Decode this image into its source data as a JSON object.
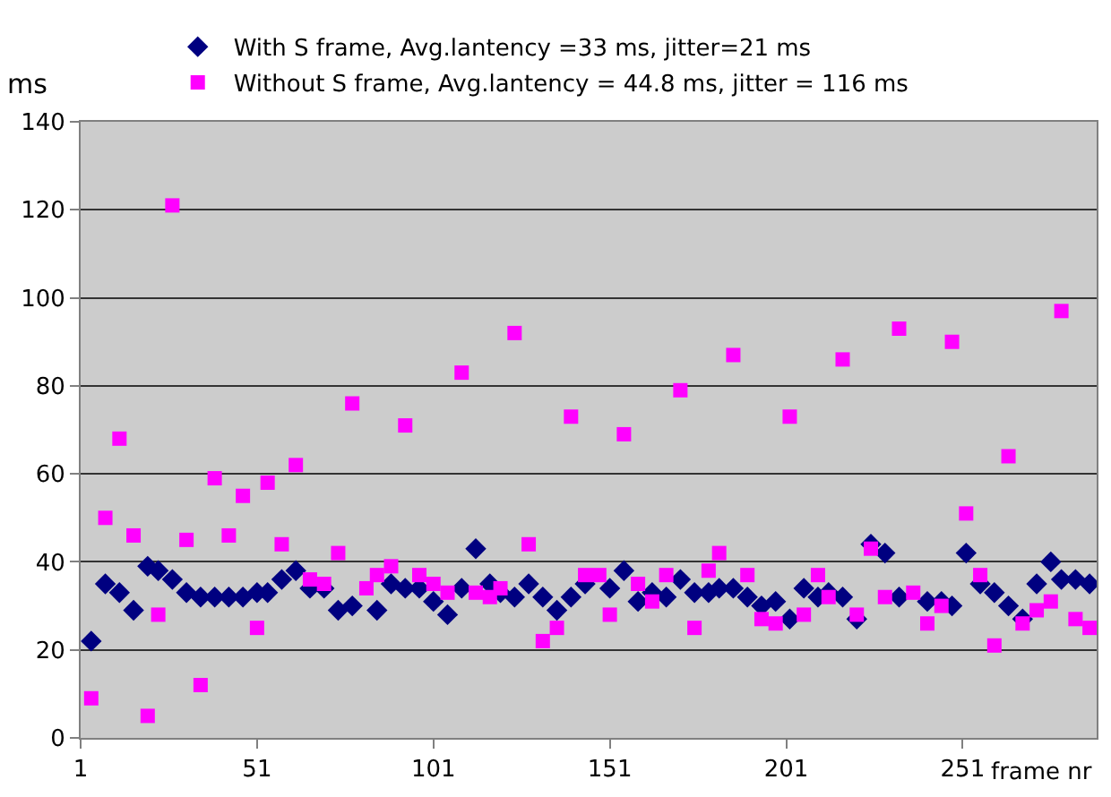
{
  "chart_data": {
    "type": "scatter",
    "xlabel": "frame nr",
    "ylabel": "ms",
    "x": [
      4,
      8,
      12,
      16,
      20,
      23,
      27,
      31,
      35,
      39,
      43,
      47,
      51,
      54,
      58,
      62,
      66,
      70,
      74,
      78,
      82,
      85,
      89,
      93,
      97,
      101,
      105,
      109,
      113,
      117,
      120,
      124,
      128,
      132,
      136,
      140,
      144,
      148,
      151,
      155,
      159,
      163,
      167,
      171,
      175,
      179,
      182,
      186,
      190,
      194,
      198,
      202,
      206,
      210,
      213,
      217,
      221,
      225,
      229,
      233,
      237,
      241,
      245,
      248,
      252,
      256,
      260,
      264,
      268,
      272,
      276,
      279,
      283,
      287
    ],
    "series": [
      {
        "name": "With S frame, Avg.lantency =33 ms, jitter=21 ms",
        "color": "#000080",
        "marker": "diamond",
        "values": [
          22,
          35,
          33,
          29,
          39,
          38,
          36,
          33,
          32,
          32,
          32,
          32,
          33,
          33,
          36,
          38,
          34,
          34,
          29,
          30,
          null,
          29,
          35,
          34,
          34,
          31,
          28,
          34,
          43,
          35,
          33,
          32,
          35,
          32,
          29,
          32,
          35,
          null,
          34,
          38,
          31,
          33,
          32,
          36,
          33,
          33,
          34,
          34,
          32,
          30,
          31,
          27,
          34,
          32,
          33,
          32,
          27,
          44,
          42,
          32,
          null,
          31,
          31,
          30,
          42,
          35,
          33,
          30,
          27,
          35,
          40,
          36,
          36,
          35
        ]
      },
      {
        "name": "Without S frame, Avg.lantency = 44.8 ms, jitter = 116 ms",
        "color": "#ff00ff",
        "marker": "square",
        "values": [
          9,
          50,
          68,
          46,
          5,
          28,
          121,
          45,
          12,
          59,
          46,
          55,
          25,
          58,
          44,
          62,
          36,
          35,
          42,
          76,
          34,
          37,
          39,
          71,
          37,
          35,
          33,
          83,
          33,
          32,
          34,
          92,
          44,
          22,
          25,
          73,
          37,
          37,
          28,
          69,
          35,
          31,
          37,
          79,
          25,
          38,
          42,
          87,
          37,
          27,
          26,
          73,
          28,
          37,
          32,
          86,
          28,
          43,
          32,
          93,
          33,
          26,
          30,
          90,
          51,
          37,
          21,
          64,
          26,
          29,
          31,
          97,
          27,
          25
        ]
      }
    ],
    "xlim": [
      1,
      289
    ],
    "ylim": [
      0,
      140
    ],
    "xticks": [
      1,
      51,
      101,
      151,
      201,
      251
    ],
    "yticks": [
      0,
      20,
      40,
      60,
      80,
      100,
      120,
      140
    ],
    "grid": "y",
    "legend": "top"
  }
}
